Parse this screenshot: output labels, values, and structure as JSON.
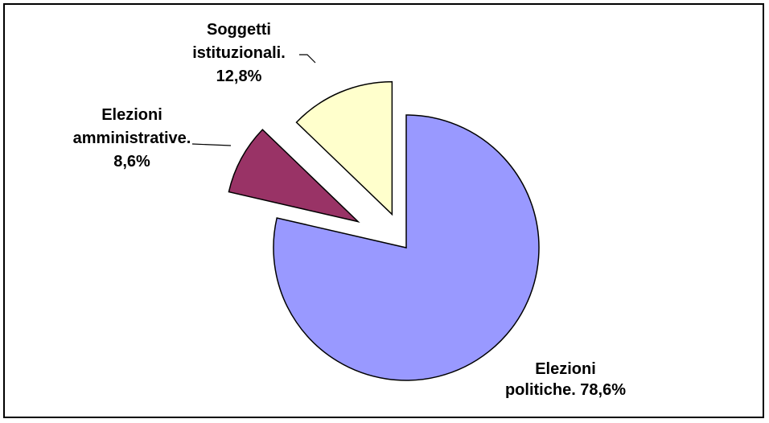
{
  "chart_data": {
    "type": "pie",
    "exploded": true,
    "slices": [
      {
        "label_lines": [
          "Elezioni",
          "politiche. 78,6%"
        ],
        "category": "Elezioni politiche",
        "value": 78.6,
        "value_label": "78,6%",
        "color": "#9999ff"
      },
      {
        "label_lines": [
          "Elezioni",
          "amministrative.",
          "8,6%"
        ],
        "category": "Elezioni amministrative",
        "value": 8.6,
        "value_label": "8,6%",
        "color": "#993366"
      },
      {
        "label_lines": [
          "Soggetti",
          "istituzionali.",
          "12,8%"
        ],
        "category": "Soggetti istituzionali",
        "value": 12.8,
        "value_label": "12,8%",
        "color": "#ffffcc"
      }
    ],
    "legend": "none",
    "start_angle": "12 o'clock",
    "direction": "clockwise"
  }
}
